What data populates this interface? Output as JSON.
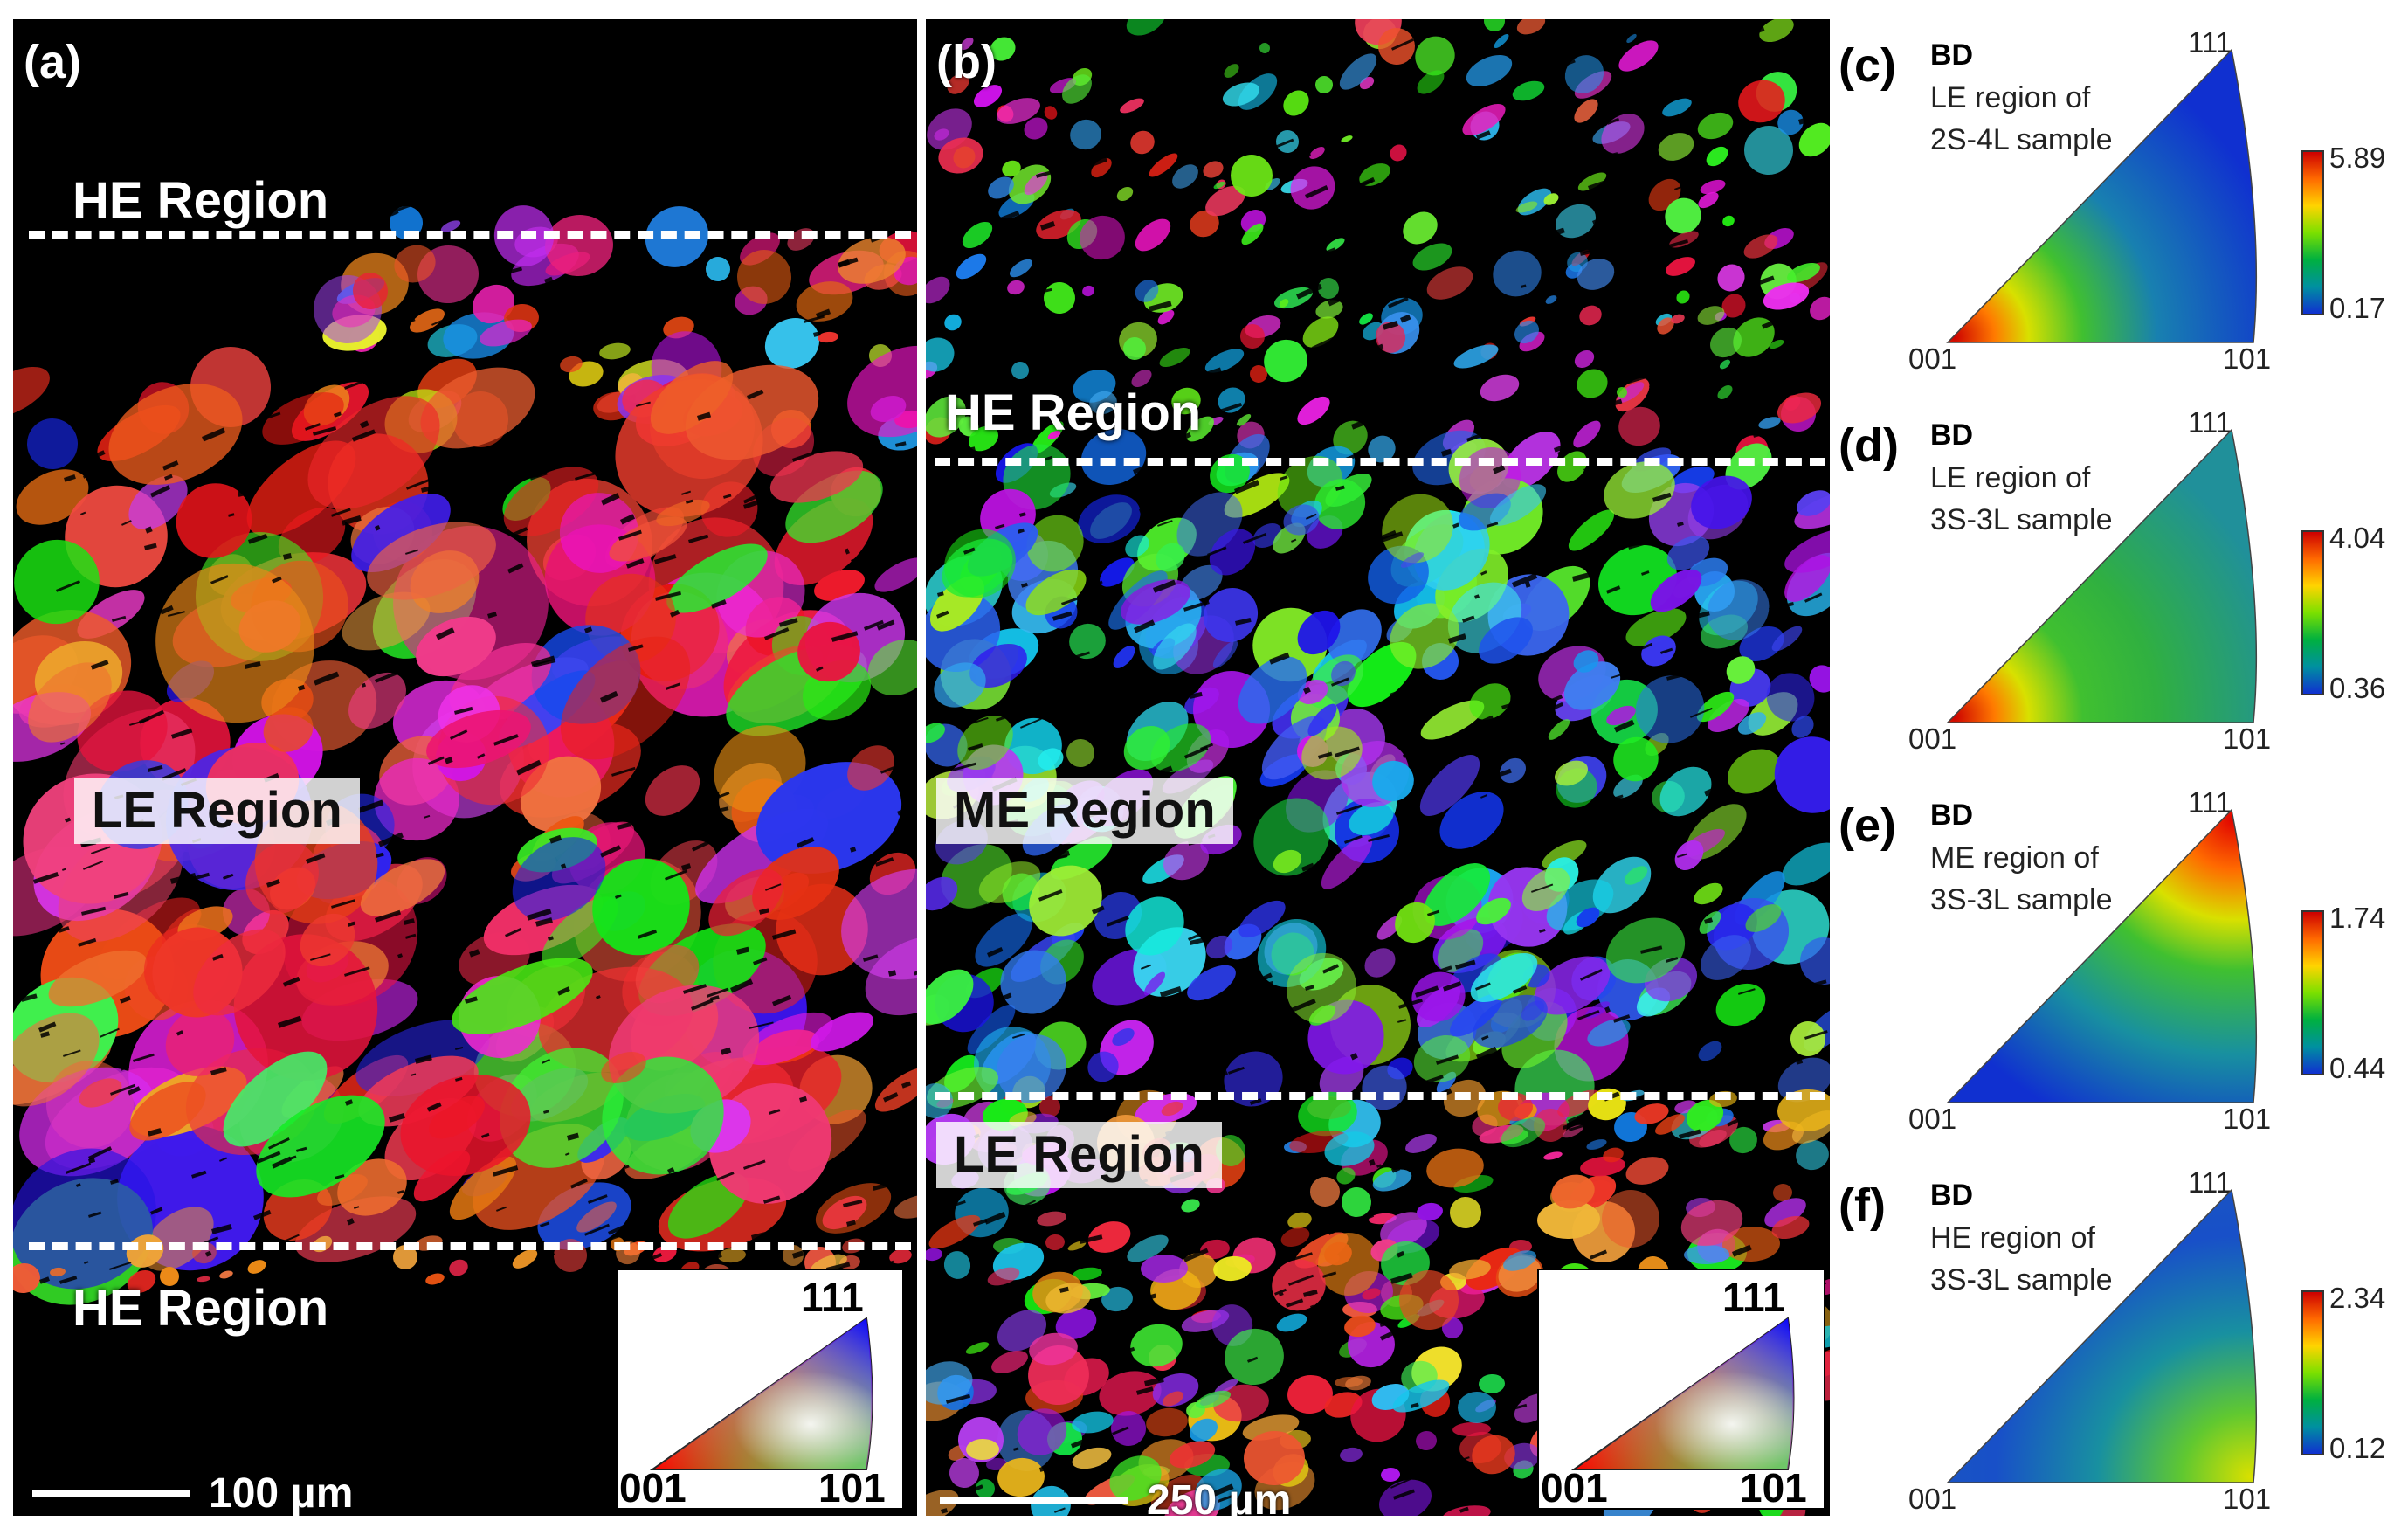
{
  "panel_a": {
    "label": "(a)",
    "regions": {
      "top": "HE Region",
      "middle": "LE Region",
      "bottom": "HE Region"
    },
    "scale_bar": "100 μm",
    "key": {
      "top": "111",
      "left": "001",
      "right": "101"
    }
  },
  "panel_b": {
    "label": "(b)",
    "regions": {
      "top": "HE Region",
      "middle": "ME Region",
      "bottom": "LE Region"
    },
    "scale_bar": "250 μm",
    "key": {
      "top": "111",
      "left": "001",
      "right": "101"
    }
  },
  "ipf_panels": [
    {
      "label": "(c)",
      "bd": "BD",
      "desc1": "LE region of",
      "desc2": "2S-4L sample",
      "c111": "111",
      "c001": "001",
      "c101": "101",
      "max": "5.89",
      "min": "0.17"
    },
    {
      "label": "(d)",
      "bd": "BD",
      "desc1": "LE region of",
      "desc2": "3S-3L sample",
      "c111": "111",
      "c001": "001",
      "c101": "101",
      "max": "4.04",
      "min": "0.36"
    },
    {
      "label": "(e)",
      "bd": "BD",
      "desc1": "ME region of",
      "desc2": "3S-3L sample",
      "c111": "111",
      "c001": "001",
      "c101": "101",
      "max": "1.74",
      "min": "0.44"
    },
    {
      "label": "(f)",
      "bd": "BD",
      "desc1": "HE region of",
      "desc2": "3S-3L sample",
      "c111": "111",
      "c001": "001",
      "c101": "101",
      "max": "2.34",
      "min": "0.12"
    }
  ],
  "colors": {
    "colorbar": [
      "#cc0000",
      "#ff6a00",
      "#ffd400",
      "#7be000",
      "#00b040",
      "#0090a0",
      "#1030d0"
    ]
  }
}
